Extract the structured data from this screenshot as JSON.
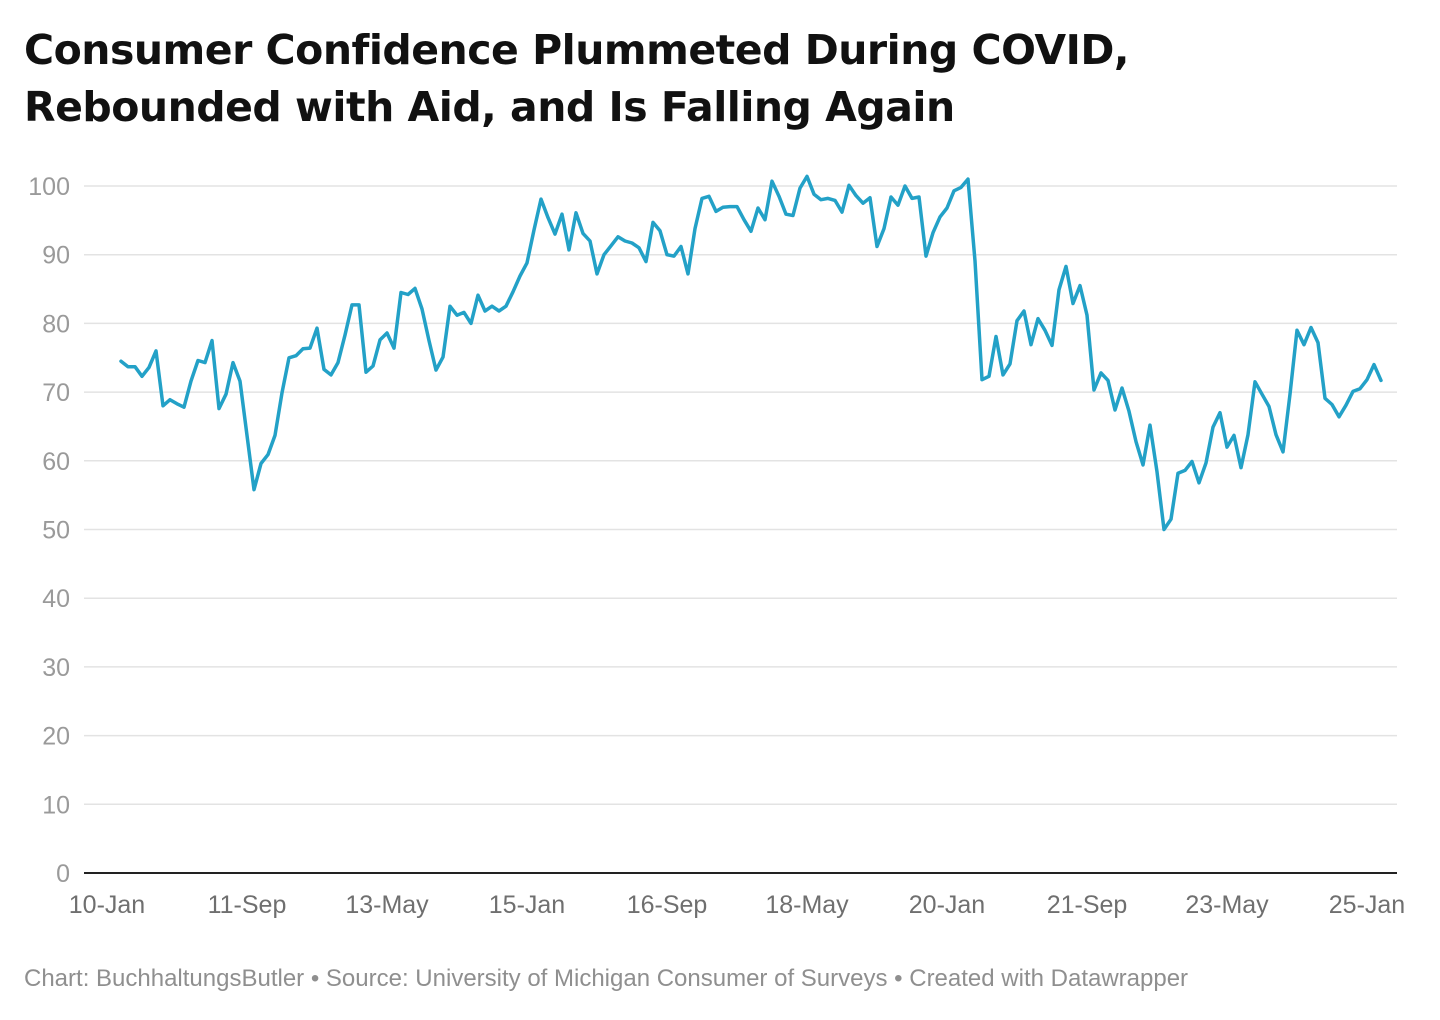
{
  "title_lines": [
    "Consumer Confidence Plummeted During COVID,",
    "Rebounded with Aid, and Is Falling Again"
  ],
  "footer": {
    "chart_credit": "Chart: BuchhaltungsButler",
    "separator1": " • ",
    "source": "Source: University of Michigan Consumer of Surveys",
    "separator2": " • ",
    "created_with": "Created with Datawrapper"
  },
  "colors": {
    "line": "#23a1c7",
    "grid": "#e3e3e3",
    "axis": "#222222"
  },
  "chart_data": {
    "type": "line",
    "title": "Consumer Confidence Plummeted During COVID, Rebounded with Aid, and Is Falling Again",
    "xlabel": "",
    "ylabel": "",
    "ylim": [
      0,
      100
    ],
    "y_ticks": [
      0,
      10,
      20,
      30,
      40,
      50,
      60,
      70,
      80,
      90,
      100
    ],
    "x_ticks": [
      "10-Jan",
      "11-Sep",
      "13-May",
      "15-Jan",
      "16-Sep",
      "18-May",
      "20-Jan",
      "21-Sep",
      "23-May",
      "25-Jan"
    ],
    "x_tick_values": [
      "2010-01",
      "2011-09",
      "2013-05",
      "2015-01",
      "2016-09",
      "2018-05",
      "2020-01",
      "2021-09",
      "2023-05",
      "2025-01"
    ],
    "grid": true,
    "legend": "none",
    "series": [
      {
        "x": [
          "2010-03",
          "2010-04",
          "2010-05",
          "2010-06",
          "2010-07",
          "2010-08",
          "2010-09",
          "2010-10",
          "2010-11",
          "2010-12",
          "2011-01",
          "2011-02",
          "2011-03",
          "2011-04",
          "2011-05",
          "2011-06",
          "2011-07",
          "2011-08",
          "2011-09",
          "2011-10",
          "2011-11",
          "2011-12",
          "2012-01",
          "2012-02",
          "2012-03",
          "2012-04",
          "2012-05",
          "2012-06",
          "2012-07",
          "2012-08",
          "2012-09",
          "2012-10",
          "2012-11",
          "2012-12",
          "2013-01",
          "2013-02",
          "2013-03",
          "2013-04",
          "2013-05",
          "2013-06",
          "2013-07",
          "2013-08",
          "2013-09",
          "2013-10",
          "2013-11",
          "2013-12",
          "2014-01",
          "2014-02",
          "2014-03",
          "2014-04",
          "2014-05",
          "2014-06",
          "2014-07",
          "2014-08",
          "2014-09",
          "2014-10",
          "2014-11",
          "2014-12",
          "2015-01",
          "2015-02",
          "2015-03",
          "2015-04",
          "2015-05",
          "2015-06",
          "2015-07",
          "2015-08",
          "2015-09",
          "2015-10",
          "2015-11",
          "2015-12",
          "2016-01",
          "2016-02",
          "2016-03",
          "2016-04",
          "2016-05",
          "2016-06",
          "2016-07",
          "2016-08",
          "2016-09",
          "2016-10",
          "2016-11",
          "2016-12",
          "2017-01",
          "2017-02",
          "2017-03",
          "2017-04",
          "2017-05",
          "2017-06",
          "2017-07",
          "2017-08",
          "2017-09",
          "2017-10",
          "2017-11",
          "2017-12",
          "2018-01",
          "2018-02",
          "2018-03",
          "2018-04",
          "2018-05",
          "2018-06",
          "2018-07",
          "2018-08",
          "2018-09",
          "2018-10",
          "2018-11",
          "2018-12",
          "2019-01",
          "2019-02",
          "2019-03",
          "2019-04",
          "2019-05",
          "2019-06",
          "2019-07",
          "2019-08",
          "2019-09",
          "2019-10",
          "2019-11",
          "2019-12",
          "2020-01",
          "2020-02",
          "2020-03",
          "2020-04",
          "2020-05",
          "2020-06",
          "2020-07",
          "2020-08",
          "2020-09",
          "2020-10",
          "2020-11",
          "2020-12",
          "2021-01",
          "2021-02",
          "2021-03",
          "2021-04",
          "2021-05",
          "2021-06",
          "2021-07",
          "2021-08",
          "2021-09",
          "2021-10",
          "2021-11",
          "2021-12",
          "2022-01",
          "2022-02",
          "2022-03",
          "2022-04",
          "2022-05",
          "2022-06",
          "2022-07",
          "2022-08",
          "2022-09",
          "2022-10",
          "2022-11",
          "2022-12",
          "2023-01",
          "2023-02",
          "2023-03",
          "2023-04",
          "2023-05",
          "2023-06",
          "2023-07",
          "2023-08",
          "2023-09",
          "2023-10",
          "2023-11",
          "2023-12",
          "2024-01",
          "2024-02",
          "2024-03",
          "2024-04",
          "2024-05",
          "2024-06",
          "2024-07",
          "2024-08",
          "2024-09",
          "2024-10",
          "2024-11",
          "2024-12",
          "2025-01",
          "2025-02",
          "2025-03"
        ],
        "values": [
          74.5,
          73.7,
          73.7,
          72.3,
          73.6,
          76.0,
          68.0,
          68.9,
          68.3,
          67.8,
          71.6,
          74.6,
          74.3,
          77.5,
          67.6,
          69.7,
          74.3,
          71.6,
          63.7,
          55.8,
          59.6,
          60.9,
          63.7,
          69.9,
          75.0,
          75.3,
          76.3,
          76.4,
          79.3,
          73.3,
          72.5,
          74.3,
          78.3,
          82.7,
          82.7,
          72.9,
          73.8,
          77.6,
          78.6,
          76.4,
          84.5,
          84.2,
          85.1,
          82.1,
          77.5,
          73.2,
          75.1,
          82.5,
          81.2,
          81.6,
          80.0,
          84.1,
          81.8,
          82.5,
          81.8,
          82.5,
          84.6,
          86.9,
          88.8,
          93.6,
          98.1,
          95.4,
          93.0,
          95.9,
          90.7,
          96.1,
          93.1,
          92.0,
          87.2,
          90.0,
          91.3,
          92.6,
          92.0,
          91.7,
          91.0,
          89.0,
          94.7,
          93.5,
          90.0,
          89.8,
          91.2,
          87.2,
          93.8,
          98.2,
          98.5,
          96.3,
          96.9,
          97.0,
          97.0,
          95.1,
          93.4,
          96.8,
          95.1,
          100.7,
          98.5,
          95.9,
          95.7,
          99.7,
          101.4,
          98.8,
          98.0,
          98.2,
          97.9,
          96.2,
          100.1,
          98.6,
          97.5,
          98.3,
          91.2,
          93.8,
          98.4,
          97.2,
          100.0,
          98.2,
          98.4,
          89.8,
          93.2,
          95.5,
          96.8,
          99.3,
          99.8,
          101.0,
          89.1,
          71.8,
          72.3,
          78.1,
          72.5,
          74.1,
          80.4,
          81.8,
          76.9,
          80.7,
          79.0,
          76.8,
          84.9,
          88.3,
          82.9,
          85.5,
          81.2,
          70.3,
          72.8,
          71.7,
          67.4,
          70.6,
          67.2,
          62.8,
          59.4,
          65.2,
          58.4,
          50.0,
          51.5,
          58.2,
          58.6,
          59.9,
          56.8,
          59.7,
          64.9,
          67.0,
          62.0,
          63.7,
          59.0,
          63.8,
          71.5,
          69.7,
          67.9,
          63.8,
          61.3,
          69.7,
          79.0,
          76.9,
          79.4,
          77.2,
          69.1,
          68.2,
          66.4,
          68.1,
          70.1,
          70.5,
          71.8,
          74.0,
          71.7
        ]
      }
    ]
  }
}
